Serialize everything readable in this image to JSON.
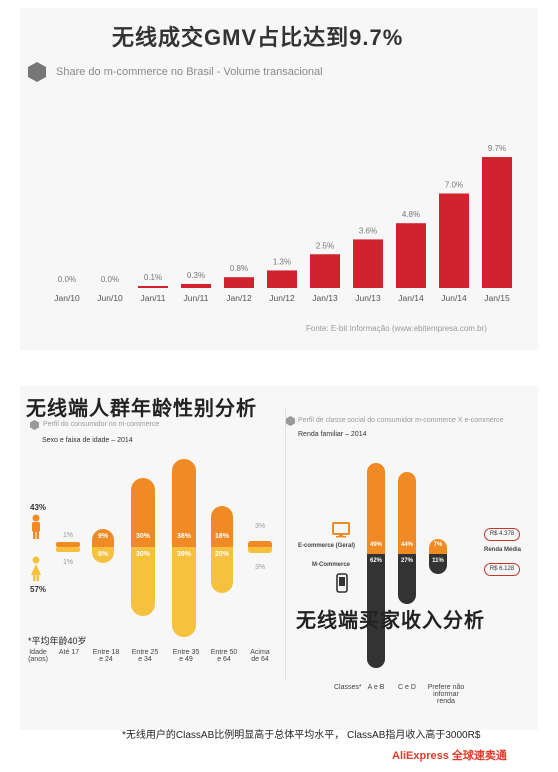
{
  "top_section": {
    "heading": "无线成交GMV占比达到9.7%",
    "subtitle": "Share do m-commerce no Brasil - Volume transacional",
    "source": "Fonte: E-bit Informação (www.ebitempresa.com.br)"
  },
  "chart_data": {
    "type": "bar",
    "title": "Share do m-commerce no Brasil - Volume transacional",
    "categories": [
      "Jan/10",
      "Jun/10",
      "Jan/11",
      "Jun/11",
      "Jan/12",
      "Jun/12",
      "Jan/13",
      "Jun/13",
      "Jan/14",
      "Jun/14",
      "Jan/15"
    ],
    "values": [
      0.0,
      0.0,
      0.1,
      0.3,
      0.8,
      1.3,
      2.5,
      3.6,
      4.8,
      7.0,
      9.7
    ],
    "value_labels": [
      "0.0%",
      "0.0%",
      "0.1%",
      "0.3%",
      "0.8%",
      "1.3%",
      "2.5%",
      "3.6%",
      "4.8%",
      "7.0%",
      "9.7%"
    ],
    "ylim": [
      0,
      10
    ],
    "bar_color": "#d0222f",
    "grid": false,
    "legend": "none"
  },
  "bottom_section": {
    "heading_left": "无线端人群年龄性别分析",
    "heading_right": "无线端买家收入分析",
    "left_panel": {
      "subtitle": "Perfil do consumidor no m-commerce",
      "caption": "Sexo e faixa de idade – 2014",
      "male_pct": "43%",
      "female_pct": "57%",
      "avg_age_note": "*平均年龄40岁",
      "age_axis_label": "Idade (anos)",
      "groups": [
        {
          "label": "Até 17",
          "male": "1%",
          "female": "1%"
        },
        {
          "label": "Entre 18 e 24",
          "male": "9%",
          "female": "8%"
        },
        {
          "label": "Entre 25 e 34",
          "male": "30%",
          "female": "30%"
        },
        {
          "label": "Entre 35 e 49",
          "male": "38%",
          "female": "39%"
        },
        {
          "label": "Entre 50 e 64",
          "male": "18%",
          "female": "20%"
        },
        {
          "label": "Acima de 64",
          "male": "3%",
          "female": "3%"
        }
      ]
    },
    "right_panel": {
      "subtitle": "Perfil de classe social do consumidor m-commerce X e-commerce",
      "caption": "Renda familiar – 2014",
      "ecommerce_label": "E-commerce (Geral)",
      "mcommerce_label": "M-Commerce",
      "classes_label": "Classes*",
      "classes": [
        {
          "label": "A e B",
          "ecommerce": "49%",
          "mcommerce": "62%"
        },
        {
          "label": "C e D",
          "ecommerce": "44%",
          "mcommerce": "27%"
        },
        {
          "label": "Prefere não informar renda",
          "ecommerce": "7%",
          "mcommerce": "11%"
        }
      ],
      "income_top": "R$ 4.378",
      "income_bottom": "R$ 6.128",
      "income_label": "Renda Média"
    },
    "footnote": "*无线用户的ClassAB比例明显高于总体平均水平，  ClassAB指月收入高于3000R$",
    "logo": "AliExpress 全球速卖通"
  }
}
